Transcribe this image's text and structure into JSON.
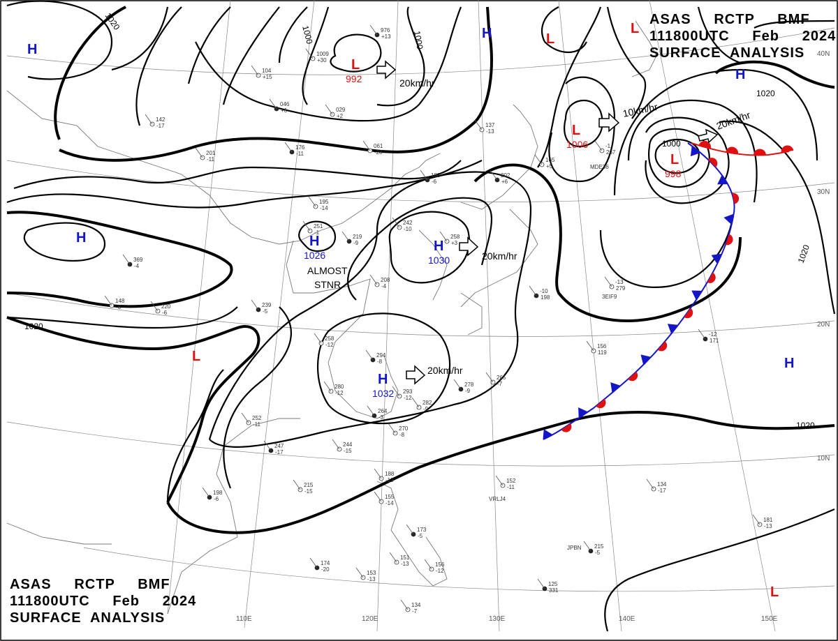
{
  "title": {
    "line1": "ASAS     RCTP     BMF",
    "line2": "111800UTC     Feb     2024",
    "line3": "SURFACE  ANALYSIS"
  },
  "colors": {
    "high": "#1515c8",
    "low": "#e01010",
    "isobar": "#000000",
    "coast": "#777777",
    "grid": "#888888",
    "front_cold": "#1515c8",
    "front_warm": "#e01010"
  },
  "pressure_centers": [
    {
      "kind": "H",
      "value": "",
      "name": "high-nw-corner"
    },
    {
      "kind": "H",
      "value": "",
      "name": "high-west"
    },
    {
      "kind": "H",
      "value": "1026",
      "name": "high-1026"
    },
    {
      "kind": "H",
      "value": "1030",
      "name": "high-1030"
    },
    {
      "kind": "H",
      "value": "1032",
      "name": "high-1032"
    },
    {
      "kind": "H",
      "value": "",
      "name": "high-north"
    },
    {
      "kind": "H",
      "value": "",
      "name": "high-ne"
    },
    {
      "kind": "H",
      "value": "",
      "name": "high-east"
    },
    {
      "kind": "L",
      "value": "992",
      "name": "low-992"
    },
    {
      "kind": "L",
      "value": "1006",
      "name": "low-1006"
    },
    {
      "kind": "L",
      "value": "998",
      "name": "low-998"
    },
    {
      "kind": "L",
      "value": "",
      "name": "low-north"
    },
    {
      "kind": "L",
      "value": "",
      "name": "low-ne-corner"
    },
    {
      "kind": "L",
      "value": "",
      "name": "low-west"
    },
    {
      "kind": "L",
      "value": "",
      "name": "low-se"
    }
  ],
  "movements": [
    {
      "speed": "20km/hr",
      "name": "motion-low-992"
    },
    {
      "speed": "10km/hr",
      "name": "motion-low-1006"
    },
    {
      "speed": "20km/hr",
      "name": "motion-low-998"
    },
    {
      "speed": "20km/hr",
      "name": "motion-high-1030"
    },
    {
      "speed": "20km/hr",
      "name": "motion-high-1032"
    }
  ],
  "isobar_labels": [
    "1020",
    "1000",
    "1000",
    "1020",
    "1020",
    "1020",
    "1020",
    "1000"
  ],
  "note_lines": [
    "ALMOST",
    "STNR"
  ],
  "latitude_labels": [
    "40N",
    "30N",
    "20N",
    "10N"
  ],
  "longitude_labels": [
    "110E",
    "120E",
    "130E",
    "140E",
    "150E"
  ],
  "station_samples": [
    "976",
    "+13",
    "1009",
    "+30",
    "104",
    "+15",
    "046",
    "+6",
    "029",
    "+2",
    "142",
    "-17",
    "176",
    "-11",
    "061",
    "-28",
    "201",
    "-11",
    "188",
    "-6",
    "195",
    "-14",
    "251",
    "-1",
    "219",
    "-9",
    "242",
    "-10",
    "258",
    "+3",
    "202",
    "+6",
    "137",
    "-13",
    "165",
    "+5",
    "369",
    "-4",
    "148",
    "-6",
    "220",
    "-6",
    "239",
    "-5",
    "208",
    "-4",
    "258",
    "-12",
    "294",
    "-8",
    "280",
    "-12",
    "293",
    "-12",
    "278",
    "-9",
    "265",
    "-7",
    "282",
    "-9",
    "264",
    "-3",
    "270",
    "-8",
    "252",
    "-11",
    "247",
    "-17",
    "244",
    "-15",
    "215",
    "-15",
    "198",
    "-6",
    "188",
    "-12",
    "155",
    "-14",
    "173",
    "-5",
    "151",
    "-13",
    "156",
    "-12",
    "174",
    "-20",
    "153",
    "-13",
    "134",
    "-7",
    "125",
    "331",
    "152",
    "-11",
    "134",
    "-17",
    "215",
    "-5",
    "181",
    "-13",
    "156",
    "119",
    "-12",
    "171",
    "-13",
    "279",
    "-1",
    "267",
    "-10",
    "198"
  ],
  "station_ids": [
    "MDE36",
    "3EIF9",
    "VRLJ4",
    "JPBN"
  ]
}
